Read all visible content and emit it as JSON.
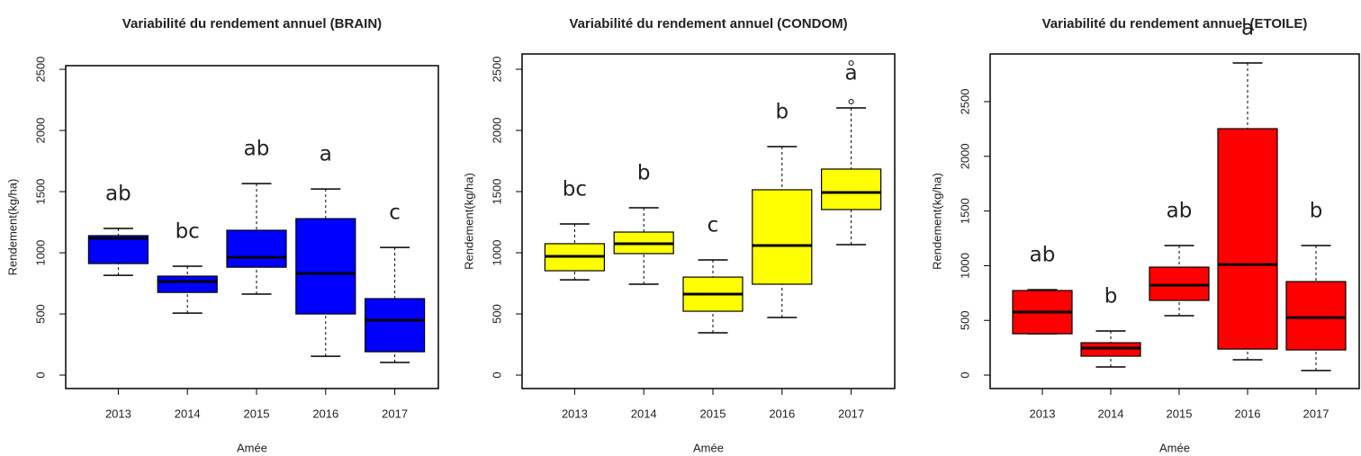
{
  "chart_data": [
    {
      "type": "box",
      "title": "Variabilité du rendement annuel (BRAIN)",
      "xlabel": "Amée",
      "ylabel": "Rendement(kg/ha)",
      "categories": [
        "2013",
        "2014",
        "2015",
        "2016",
        "2017"
      ],
      "color": "#0000ff",
      "whisker_low": [
        816,
        507,
        662,
        154,
        103
      ],
      "q1": [
        912,
        676,
        882,
        500,
        191
      ],
      "median": [
        1118,
        765,
        963,
        831,
        449
      ],
      "q3": [
        1140,
        809,
        1184,
        1279,
        625
      ],
      "whisker_high": [
        1199,
        890,
        1566,
        1522,
        1044
      ],
      "outliers": [
        [],
        [],
        [],
        [],
        []
      ],
      "letters": [
        "ab",
        "bc",
        "ab",
        "a",
        "c"
      ],
      "ylim": [
        -110,
        2530
      ],
      "yticks": [
        0,
        500,
        1000,
        1500,
        2000,
        2500
      ]
    },
    {
      "type": "box",
      "title": "Variabilité du rendement annuel (CONDOM)",
      "xlabel": "Amée",
      "ylabel": "Rendement(kg/ha)",
      "categories": [
        "2013",
        "2014",
        "2015",
        "2016",
        "2017"
      ],
      "color": "#ffff00",
      "whisker_low": [
        779,
        743,
        346,
        471,
        1066
      ],
      "q1": [
        853,
        993,
        522,
        743,
        1353
      ],
      "median": [
        971,
        1074,
        662,
        1059,
        1493
      ],
      "q3": [
        1074,
        1169,
        801,
        1515,
        1684
      ],
      "whisker_high": [
        1235,
        1368,
        941,
        1868,
        2184
      ],
      "outliers": [
        [],
        [],
        [],
        [],
        [
          2235,
          2551
        ]
      ],
      "letters": [
        "bc",
        "b",
        "c",
        "b",
        "a"
      ],
      "ylim": [
        -110,
        2625
      ],
      "yticks": [
        0,
        500,
        1000,
        1500,
        2000,
        2500
      ]
    },
    {
      "type": "box",
      "title": "Variabilité du rendement annuel (ETOILE)",
      "xlabel": "Amée",
      "ylabel": "Rendement(kg/ha)",
      "categories": [
        "2013",
        "2014",
        "2015",
        "2016",
        "2017"
      ],
      "color": "#ff0000",
      "whisker_low": [
        378,
        74,
        543,
        140,
        41
      ],
      "q1": [
        378,
        173,
        683,
        238,
        230
      ],
      "median": [
        576,
        247,
        822,
        1011,
        526
      ],
      "q3": [
        773,
        296,
        987,
        2253,
        855
      ],
      "whisker_high": [
        781,
        403,
        1184,
        2854,
        1184
      ],
      "outliers": [
        [],
        [],
        [],
        [],
        []
      ],
      "letters": [
        "ab",
        "b",
        "ab",
        "a",
        "b"
      ],
      "ylim": [
        -123,
        2936
      ],
      "yticks": [
        0,
        500,
        1000,
        1500,
        2000,
        2500
      ]
    }
  ]
}
